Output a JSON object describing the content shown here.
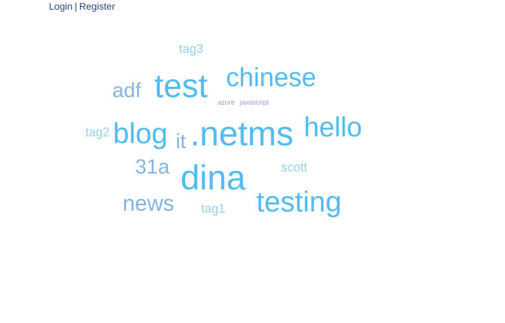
{
  "header": {
    "login_label": "Login",
    "separator": "|",
    "register_label": "Register"
  },
  "tag_cloud": {
    "tags": [
      {
        "label": "tag3"
      },
      {
        "label": "chinese"
      },
      {
        "label": "adf"
      },
      {
        "label": "test"
      },
      {
        "label": "azure"
      },
      {
        "label": "javascript"
      },
      {
        "label": "tag2"
      },
      {
        "label": "blog"
      },
      {
        "label": "it"
      },
      {
        "label": ".netms"
      },
      {
        "label": "hello"
      },
      {
        "label": "31a"
      },
      {
        "label": "dina"
      },
      {
        "label": "scott"
      },
      {
        "label": "news"
      },
      {
        "label": "tag1"
      },
      {
        "label": "testing"
      }
    ]
  },
  "colors": {
    "link": "#274b80",
    "tag_primary": "#52bbef",
    "tag_secondary": "#86b3e2",
    "tag_light": "#97d0f2",
    "tag_small": "#8f9fd4"
  }
}
